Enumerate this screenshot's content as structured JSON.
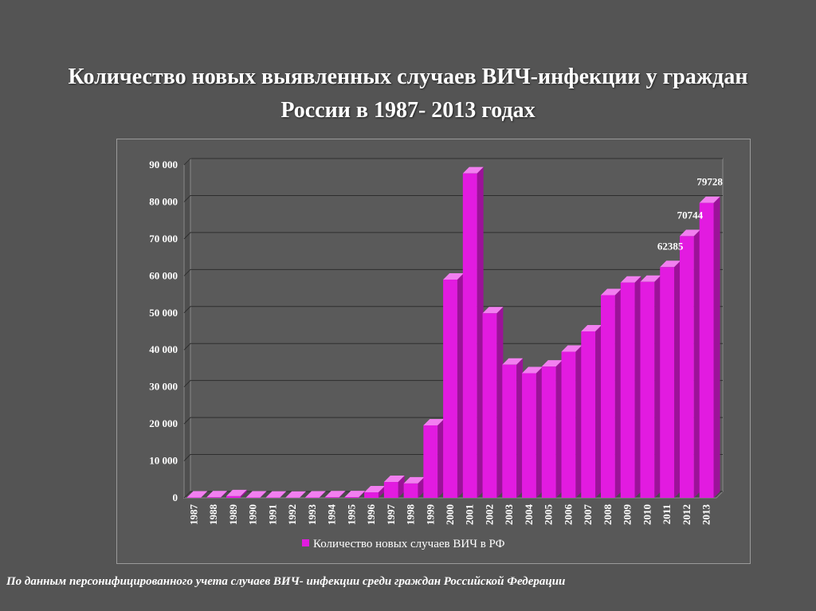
{
  "slide": {
    "title": "Количество новых выявленных случаев ВИЧ-инфекции у граждан России в 1987- 2013 годах",
    "footnote": "По данным персонифицированного учета случаев ВИЧ- инфекции среди граждан Российской Федерации"
  },
  "colors": {
    "bar_front": "#e21be0",
    "bar_side": "#9c1299",
    "bar_top": "#f27ff0",
    "gridline": "#2e2e2e",
    "wall": "#5a5a5a"
  },
  "chart_data": {
    "type": "bar",
    "title": "",
    "xlabel": "",
    "ylabel": "",
    "ylim": [
      0,
      90000
    ],
    "y_ticks": [
      "0",
      "10 000",
      "20 000",
      "30 000",
      "40 000",
      "50 000",
      "60 000",
      "70 000",
      "80 000",
      "90 000"
    ],
    "categories": [
      "1987",
      "1988",
      "1989",
      "1990",
      "1991",
      "1992",
      "1993",
      "1994",
      "1995",
      "1996",
      "1997",
      "1998",
      "1999",
      "2000",
      "2001",
      "2002",
      "2003",
      "2004",
      "2005",
      "2006",
      "2007",
      "2008",
      "2009",
      "2010",
      "2011",
      "2012",
      "2013"
    ],
    "series": [
      {
        "name": "Количество новых случаев ВИЧ в РФ",
        "values": [
          100,
          150,
          450,
          100,
          80,
          50,
          100,
          160,
          200,
          1500,
          4300,
          3900,
          19600,
          59000,
          87700,
          49900,
          36000,
          33700,
          35500,
          39500,
          45000,
          54800,
          58200,
          58400,
          62385,
          70744,
          79728
        ]
      }
    ],
    "data_labels": [
      {
        "category": "2011",
        "text": "62385"
      },
      {
        "category": "2012",
        "text": "70744"
      },
      {
        "category": "2013",
        "text": "79728"
      }
    ],
    "legend": {
      "position": "bottom",
      "label": "Количество новых случаев ВИЧ в РФ"
    },
    "grid": true
  }
}
